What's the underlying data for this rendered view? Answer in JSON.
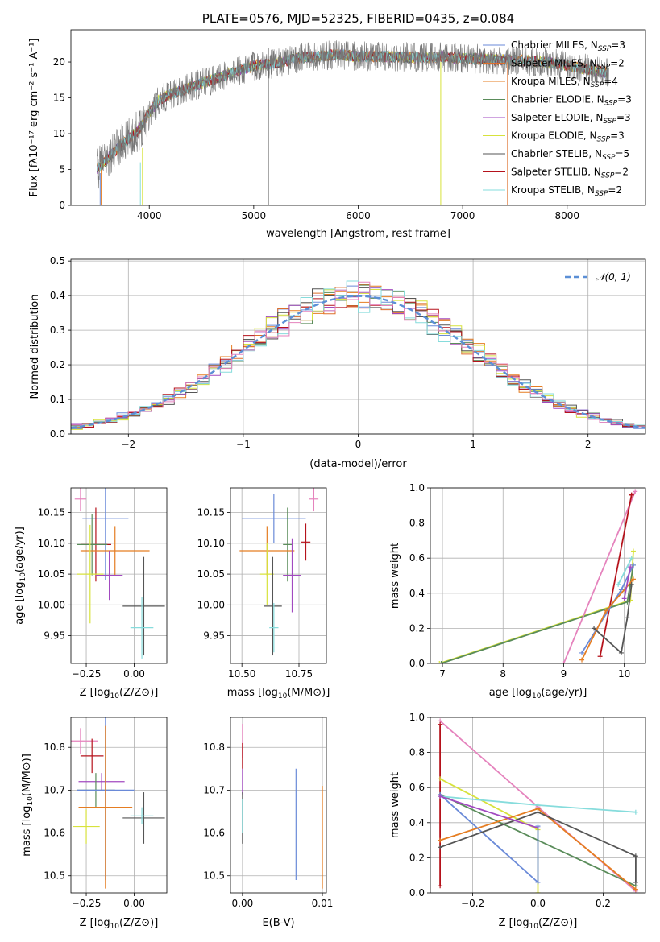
{
  "colors": {
    "Chabrier MILES": "#6a8ad8",
    "Salpeter MILES": "#dd6e2a",
    "Kroupa MILES": "#e57d22",
    "Chabrier ELODIE": "#5a8c5a",
    "Salpeter ELODIE": "#a24ac0",
    "Kroupa ELODIE": "#d7e23c",
    "Chabrier STELIB": "#555555",
    "Salpeter STELIB": "#b5121b",
    "Kroupa STELIB": "#86dcdc",
    "pink": "#e583bd",
    "gaussian": "#5b8fd6"
  },
  "chart_data": [
    {
      "id": "spectrum",
      "type": "line",
      "title": "PLATE=0576, MJD=52325, FIBERID=0435, z=0.084",
      "xlabel": "wavelength [Angstrom, rest frame]",
      "ylabel": "Flux [f",
      "ylabel_math": "λ10⁻¹⁷ erg cm⁻² s⁻¹ A⁻¹]",
      "xlim": [
        3250,
        8750
      ],
      "ylim": [
        0,
        24.5
      ],
      "xticks": [
        "4000",
        "5000",
        "6000",
        "7000",
        "8000"
      ],
      "yticks": [
        "0",
        "5",
        "10",
        "15",
        "20"
      ],
      "grid": false,
      "legend_position": "top-right",
      "legend": [
        {
          "key": "Chabrier MILES",
          "label": "Chabrier MILES, N",
          "sub": "SSP",
          "tail": "=3"
        },
        {
          "key": "Salpeter MILES",
          "label": "Salpeter MILES, N",
          "sub": "SSP",
          "tail": "=2"
        },
        {
          "key": "Kroupa MILES",
          "label": "Kroupa MILES, N",
          "sub": "SSP",
          "tail": "=4"
        },
        {
          "key": "Chabrier ELODIE",
          "label": "Chabrier ELODIE, N",
          "sub": "SSP",
          "tail": "=3"
        },
        {
          "key": "Salpeter ELODIE",
          "label": "Salpeter ELODIE, N",
          "sub": "SSP",
          "tail": "=3"
        },
        {
          "key": "Kroupa ELODIE",
          "label": "Kroupa ELODIE, N",
          "sub": "SSP",
          "tail": "=3"
        },
        {
          "key": "Chabrier STELIB",
          "label": "Chabrier STELIB, N",
          "sub": "SSP",
          "tail": "=5"
        },
        {
          "key": "Salpeter STELIB",
          "label": "Salpeter STELIB, N",
          "sub": "SSP",
          "tail": "=2"
        },
        {
          "key": "Kroupa STELIB",
          "label": "Kroupa STELIB, N",
          "sub": "SSP",
          "tail": "=2"
        }
      ],
      "continuum": {
        "x": [
          3500,
          3700,
          3900,
          4000,
          4100,
          4200,
          4400,
          4600,
          4800,
          5000,
          5200,
          5400,
          5600,
          5800,
          6000,
          6200,
          6400,
          6600,
          6800,
          7000,
          7200,
          7400,
          7600,
          7800,
          8000,
          8200,
          8400
        ],
        "y": [
          5,
          8,
          10.5,
          13,
          14.8,
          15.5,
          16.5,
          17.5,
          18.5,
          19.5,
          19.8,
          20.5,
          20.8,
          21,
          20.8,
          20.8,
          20.7,
          20.6,
          20.7,
          20.5,
          20.4,
          20.3,
          20.2,
          20.0,
          19.5,
          19.0,
          18.5
        ]
      },
      "dropouts": [
        {
          "key": "Chabrier MILES",
          "x": 3530,
          "y": 4.5
        },
        {
          "key": "Kroupa MILES",
          "x": 3540,
          "y": 5
        },
        {
          "key": "Kroupa ELODIE",
          "x": 3935,
          "y": 8
        },
        {
          "key": "Kroupa STELIB",
          "x": 3915,
          "y": 6
        },
        {
          "key": "Kroupa ELODIE",
          "x": 6790,
          "y": 20
        },
        {
          "key": "Salpeter MILES",
          "x": 7430,
          "y": 20
        },
        {
          "key": "Chabrier STELIB",
          "x": 5140,
          "y": 22
        }
      ]
    },
    {
      "id": "residuals",
      "type": "line",
      "title": "",
      "xlabel": "(data-model)/error",
      "ylabel": "Normed distribution",
      "xlim": [
        -2.5,
        2.5
      ],
      "ylim": [
        0,
        0.505
      ],
      "xticks": [
        -2,
        -1,
        0,
        1,
        2
      ],
      "xtick_labels": [
        "−2",
        "−1",
        "0",
        "1",
        "2"
      ],
      "yticks": [
        0,
        0.1,
        0.2,
        0.3,
        0.4,
        0.5
      ],
      "ytick_labels": [
        "0.0",
        "0.1",
        "0.2",
        "0.3",
        "0.4",
        "0.5"
      ],
      "grid": true,
      "legend": {
        "label": "𝒩(0, 1)",
        "position": "top-right"
      },
      "bin_width": 0.1,
      "series_keys": [
        "Chabrier MILES",
        "Salpeter MILES",
        "Kroupa MILES",
        "Chabrier ELODIE",
        "Salpeter ELODIE",
        "Kroupa ELODIE",
        "Chabrier STELIB",
        "Salpeter STELIB",
        "Kroupa STELIB",
        "pink"
      ]
    },
    {
      "id": "age-vs-Z",
      "type": "scatter",
      "xlabel": "Z [log",
      "xlabel_math": "10(Z/Z⊙)]",
      "ylabel": "age  [log",
      "ylabel_math": "10(age/yr)]",
      "xlim": [
        -0.33,
        0.17
      ],
      "ylim": [
        9.905,
        10.19
      ],
      "xticks": [
        -0.25,
        0.0
      ],
      "xtick_labels": [
        "−0.25",
        "0.00"
      ],
      "yticks": [
        9.95,
        10.0,
        10.05,
        10.1,
        10.15
      ],
      "ytick_labels": [
        "9.95",
        "10.00",
        "10.05",
        "10.10",
        "10.15"
      ],
      "grid": true,
      "points": [
        {
          "key": "pink",
          "x": -0.28,
          "y": 10.172,
          "xerr": 0.03,
          "yerr": 0.02
        },
        {
          "key": "Chabrier MILES",
          "x": -0.15,
          "y": 10.14,
          "xerr": 0.12,
          "yerr": 0.1
        },
        {
          "key": "Salpeter STELIB",
          "x": -0.2,
          "y": 10.098,
          "xerr": 0.08,
          "yerr": 0.06
        },
        {
          "key": "Chabrier ELODIE",
          "x": -0.22,
          "y": 10.098,
          "xerr": 0.08,
          "yerr": 0.05
        },
        {
          "key": "Kroupa MILES",
          "x": -0.1,
          "y": 10.088,
          "xerr": 0.18,
          "yerr": 0.04
        },
        {
          "key": "Kroupa ELODIE",
          "x": -0.23,
          "y": 10.05,
          "xerr": 0.07,
          "yerr": 0.08
        },
        {
          "key": "Salpeter ELODIE",
          "x": -0.13,
          "y": 10.048,
          "xerr": 0.07,
          "yerr": 0.04
        },
        {
          "key": "Chabrier STELIB",
          "x": 0.05,
          "y": 9.998,
          "xerr": 0.11,
          "yerr": 0.08
        },
        {
          "key": "Kroupa STELIB",
          "x": 0.04,
          "y": 9.963,
          "xerr": 0.06,
          "yerr": 0.05
        }
      ]
    },
    {
      "id": "age-vs-mass",
      "type": "scatter",
      "xlabel": "mass [log",
      "xlabel_math": "10(M/M⊙)]",
      "ylabel": "",
      "xlim": [
        10.45,
        10.87
      ],
      "ylim": [
        9.905,
        10.19
      ],
      "xticks": [
        10.5,
        10.75
      ],
      "xtick_labels": [
        "10.50",
        "10.75"
      ],
      "yticks": [
        9.95,
        10.0,
        10.05,
        10.1,
        10.15
      ],
      "ytick_labels": [
        "9.95",
        "10.00",
        "10.05",
        "10.10",
        "10.15"
      ],
      "grid": true,
      "points": [
        {
          "key": "pink",
          "x": 10.815,
          "y": 10.172,
          "xerr": 0.02,
          "yerr": 0.02
        },
        {
          "key": "Chabrier MILES",
          "x": 10.64,
          "y": 10.14,
          "xerr": 0.14,
          "yerr": 0.04
        },
        {
          "key": "Salpeter STELIB",
          "x": 10.78,
          "y": 10.102,
          "xerr": 0.02,
          "yerr": 0.03
        },
        {
          "key": "Chabrier ELODIE",
          "x": 10.7,
          "y": 10.098,
          "xerr": 0.02,
          "yerr": 0.06
        },
        {
          "key": "Kroupa MILES",
          "x": 10.61,
          "y": 10.088,
          "xerr": 0.12,
          "yerr": 0.04
        },
        {
          "key": "Kroupa ELODIE",
          "x": 10.61,
          "y": 10.05,
          "xerr": 0.03,
          "yerr": 0.05
        },
        {
          "key": "Salpeter ELODIE",
          "x": 10.72,
          "y": 10.048,
          "xerr": 0.04,
          "yerr": 0.06
        },
        {
          "key": "Chabrier STELIB",
          "x": 10.635,
          "y": 9.998,
          "xerr": 0.04,
          "yerr": 0.08
        },
        {
          "key": "Kroupa STELIB",
          "x": 10.64,
          "y": 9.963,
          "xerr": 0.02,
          "yerr": 0.04
        }
      ]
    },
    {
      "id": "mass-weight-vs-age",
      "type": "line",
      "xlabel": "age  [log",
      "xlabel_math": "10(age/yr)]",
      "ylabel": "mass weight",
      "xlim": [
        6.8,
        10.35
      ],
      "ylim": [
        0,
        1.0
      ],
      "xticks": [
        7,
        8,
        9,
        10
      ],
      "xtick_labels": [
        "7",
        "8",
        "9",
        "10"
      ],
      "yticks": [
        0,
        0.2,
        0.4,
        0.6,
        0.8,
        1.0
      ],
      "ytick_labels": [
        "0.0",
        "0.2",
        "0.4",
        "0.6",
        "0.8",
        "1.0"
      ],
      "grid": true,
      "series": [
        {
          "key": "Kroupa ELODIE",
          "x": [
            6.95,
            10.1,
            10.15
          ],
          "y": [
            0.0,
            0.36,
            0.64
          ]
        },
        {
          "key": "Chabrier ELODIE",
          "x": [
            6.98,
            10.05,
            10.15
          ],
          "y": [
            0.0,
            0.35,
            0.56
          ]
        },
        {
          "key": "pink",
          "x": [
            9.0,
            10.18
          ],
          "y": [
            0.0,
            0.98
          ]
        },
        {
          "key": "Salpeter STELIB",
          "x": [
            9.6,
            10.12,
            10.12
          ],
          "y": [
            0.04,
            0.96,
            0.96
          ]
        },
        {
          "key": "Chabrier MILES",
          "x": [
            9.3,
            9.95,
            10.15
          ],
          "y": [
            0.06,
            0.42,
            0.56
          ]
        },
        {
          "key": "Kroupa MILES",
          "x": [
            9.3,
            9.7,
            10.15
          ],
          "y": [
            0.02,
            0.3,
            0.48
          ]
        },
        {
          "key": "Chabrier STELIB",
          "x": [
            9.5,
            9.95,
            10.05,
            10.12
          ],
          "y": [
            0.2,
            0.06,
            0.26,
            0.45
          ]
        },
        {
          "key": "Salpeter ELODIE",
          "x": [
            10.0,
            10.1
          ],
          "y": [
            0.37,
            0.55
          ]
        },
        {
          "key": "Kroupa STELIB",
          "x": [
            9.9,
            10.12
          ],
          "y": [
            0.45,
            0.6
          ]
        }
      ]
    },
    {
      "id": "mass-vs-Z",
      "type": "scatter",
      "xlabel": "Z [log",
      "xlabel_math": "10(Z/Z⊙)]",
      "ylabel": "mass [log",
      "ylabel_math": "10(M/M⊙)]",
      "xlim": [
        -0.33,
        0.17
      ],
      "ylim": [
        10.46,
        10.87
      ],
      "xticks": [
        -0.25,
        0.0
      ],
      "xtick_labels": [
        "−0.25",
        "0.00"
      ],
      "yticks": [
        10.5,
        10.6,
        10.7,
        10.8
      ],
      "ytick_labels": [
        "10.5",
        "10.6",
        "10.7",
        "10.8"
      ],
      "grid": true,
      "points": [
        {
          "key": "pink",
          "x": -0.28,
          "y": 10.815,
          "xerr": 0.09,
          "yerr": 0.03
        },
        {
          "key": "Salpeter STELIB",
          "x": -0.22,
          "y": 10.78,
          "xerr": 0.06,
          "yerr": 0.04
        },
        {
          "key": "Salpeter ELODIE",
          "x": -0.17,
          "y": 10.72,
          "xerr": 0.12,
          "yerr": 0.02
        },
        {
          "key": "Chabrier ELODIE",
          "x": -0.2,
          "y": 10.7,
          "xerr": 0.1,
          "yerr": 0.04
        },
        {
          "key": "Chabrier MILES",
          "x": -0.15,
          "y": 10.7,
          "xerr": 0.15,
          "yerr": 0.21
        },
        {
          "key": "Kroupa MILES",
          "x": -0.15,
          "y": 10.66,
          "xerr": 0.14,
          "yerr": 0.19
        },
        {
          "key": "Chabrier STELIB",
          "x": 0.05,
          "y": 10.635,
          "xerr": 0.11,
          "yerr": 0.06
        },
        {
          "key": "Kroupa STELIB",
          "x": 0.04,
          "y": 10.64,
          "xerr": 0.06,
          "yerr": 0.02
        },
        {
          "key": "Kroupa ELODIE",
          "x": -0.25,
          "y": 10.615,
          "xerr": 0.07,
          "yerr": 0.04
        }
      ]
    },
    {
      "id": "mass-vs-EBV",
      "type": "scatter",
      "xlabel": "E(B-V)",
      "ylabel": "",
      "xlim": [
        -0.0015,
        0.0105
      ],
      "ylim": [
        10.46,
        10.87
      ],
      "xticks": [
        0.0,
        0.01
      ],
      "xtick_labels": [
        "0.00",
        "0.01"
      ],
      "yticks": [
        10.5,
        10.6,
        10.7,
        10.8
      ],
      "ytick_labels": [
        "10.5",
        "10.6",
        "10.7",
        "10.8"
      ],
      "grid": true,
      "points": [
        {
          "key": "pink",
          "x": 0.0,
          "y": 10.815,
          "xerr": 0,
          "yerr": 0.04
        },
        {
          "key": "Salpeter STELIB",
          "x": 0.0,
          "y": 10.78,
          "xerr": 0,
          "yerr": 0.03
        },
        {
          "key": "Salpeter ELODIE",
          "x": 0.0,
          "y": 10.72,
          "xerr": 0,
          "yerr": 0.03
        },
        {
          "key": "Chabrier STELIB",
          "x": 0.0,
          "y": 10.635,
          "xerr": 0,
          "yerr": 0.06
        },
        {
          "key": "Kroupa STELIB",
          "x": 0.0,
          "y": 10.64,
          "xerr": 0,
          "yerr": 0.04
        },
        {
          "key": "Chabrier MILES",
          "x": 0.0067,
          "y": 10.62,
          "xerr": 0,
          "yerr": 0.13
        },
        {
          "key": "Kroupa MILES",
          "x": 0.01,
          "y": 10.59,
          "xerr": 0,
          "yerr": 0.12
        }
      ]
    },
    {
      "id": "mass-weight-vs-Z",
      "type": "line",
      "xlabel": "Z [log",
      "xlabel_math": "10(Z/Z⊙)]",
      "ylabel": "mass weight",
      "xlim": [
        -0.33,
        0.33
      ],
      "ylim": [
        0,
        1.0
      ],
      "xticks": [
        -0.2,
        0.0,
        0.2
      ],
      "xtick_labels": [
        "−0.2",
        "0.0",
        "0.2"
      ],
      "yticks": [
        0,
        0.2,
        0.4,
        0.6,
        0.8,
        1.0
      ],
      "ytick_labels": [
        "0.0",
        "0.2",
        "0.4",
        "0.6",
        "0.8",
        "1.0"
      ],
      "grid": true,
      "series": [
        {
          "key": "pink",
          "x": [
            -0.3,
            0.0,
            0.3
          ],
          "y": [
            0.98,
            0.49,
            0.01
          ]
        },
        {
          "key": "Salpeter STELIB",
          "x": [
            -0.3,
            -0.3
          ],
          "y": [
            0.04,
            0.96
          ]
        },
        {
          "key": "Kroupa ELODIE",
          "x": [
            -0.3,
            0.0,
            0.0
          ],
          "y": [
            0.65,
            0.36,
            0.0
          ]
        },
        {
          "key": "Chabrier ELODIE",
          "x": [
            -0.3,
            0.3
          ],
          "y": [
            0.56,
            0.04
          ]
        },
        {
          "key": "Kroupa STELIB",
          "x": [
            -0.3,
            0.0,
            0.3
          ],
          "y": [
            0.55,
            0.5,
            0.46
          ]
        },
        {
          "key": "Chabrier MILES",
          "x": [
            -0.3,
            0.0,
            0.0
          ],
          "y": [
            0.56,
            0.06,
            0.38
          ]
        },
        {
          "key": "Kroupa MILES",
          "x": [
            -0.3,
            0.0,
            0.3
          ],
          "y": [
            0.3,
            0.48,
            0.02
          ]
        },
        {
          "key": "Chabrier STELIB",
          "x": [
            -0.3,
            0.0,
            0.3,
            0.3
          ],
          "y": [
            0.26,
            0.46,
            0.21,
            0.06
          ]
        },
        {
          "key": "Salpeter ELODIE",
          "x": [
            -0.3,
            0.0
          ],
          "y": [
            0.55,
            0.37
          ]
        }
      ]
    }
  ]
}
